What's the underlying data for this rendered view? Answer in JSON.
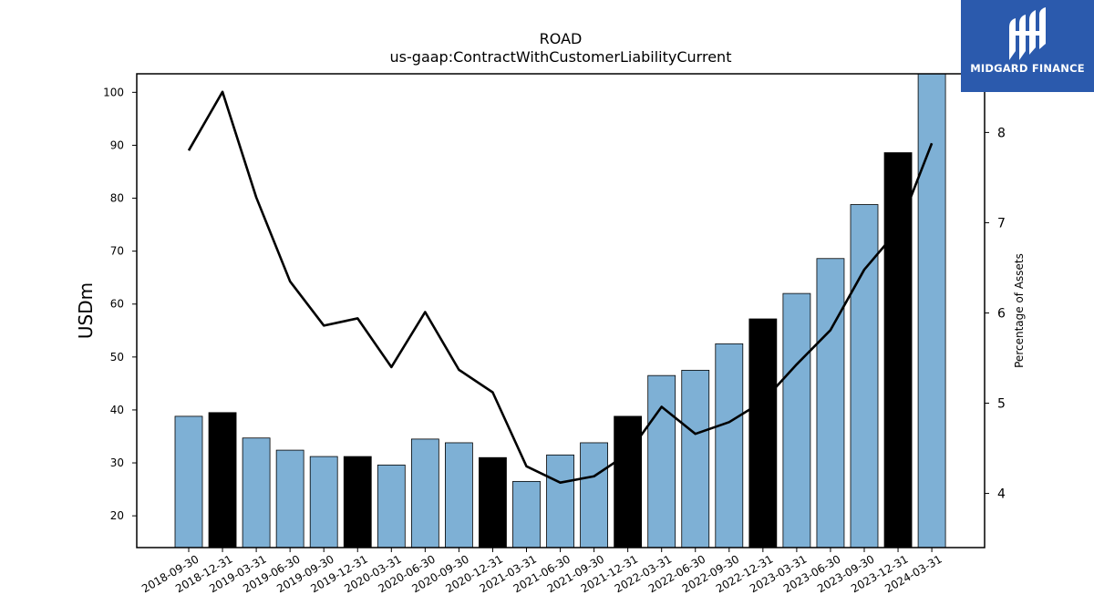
{
  "chart_data": {
    "type": "bar",
    "title": "ROAD",
    "subtitle": "us-gaap:ContractWithCustomerLiabilityCurrent",
    "ylabel": "USDm",
    "ylabel_right": "Percentage of Assets",
    "categories": [
      "2018-09-30",
      "2018-12-31",
      "2019-03-31",
      "2019-06-30",
      "2019-09-30",
      "2019-12-31",
      "2020-03-31",
      "2020-06-30",
      "2020-09-30",
      "2020-12-31",
      "2021-03-31",
      "2021-06-30",
      "2021-09-30",
      "2021-12-31",
      "2022-03-31",
      "2022-06-30",
      "2022-09-30",
      "2022-12-31",
      "2023-03-31",
      "2023-06-30",
      "2023-09-30",
      "2023-12-31",
      "2024-03-31"
    ],
    "series": [
      {
        "type": "bar",
        "axis": "left",
        "values": [
          38.8,
          39.5,
          34.7,
          32.4,
          31.2,
          31.2,
          29.6,
          34.5,
          33.8,
          31.0,
          26.5,
          31.5,
          33.8,
          38.8,
          46.5,
          47.5,
          52.5,
          57.2,
          62.0,
          68.6,
          78.8,
          88.6,
          103.5
        ],
        "highlight": [
          false,
          true,
          false,
          false,
          false,
          true,
          false,
          false,
          false,
          true,
          false,
          false,
          false,
          true,
          false,
          false,
          false,
          true,
          false,
          false,
          false,
          true,
          false
        ]
      },
      {
        "type": "line",
        "axis": "right",
        "values": [
          7.8,
          8.45,
          7.28,
          6.35,
          5.86,
          5.94,
          5.4,
          6.01,
          5.37,
          5.12,
          4.3,
          4.12,
          4.19,
          4.44,
          4.96,
          4.66,
          4.79,
          5.02,
          5.43,
          5.81,
          6.48,
          6.92,
          7.88
        ]
      }
    ],
    "ylim": [
      14,
      103.5
    ],
    "ylim_right": [
      3.4,
      8.65
    ],
    "yticks": [
      20,
      30,
      40,
      50,
      60,
      70,
      80,
      90,
      100
    ],
    "yticks_right": [
      4,
      5,
      6,
      7,
      8
    ],
    "colors": {
      "bar": "#7eb0d5",
      "highlight_bar": "#000000",
      "line": "#000000"
    },
    "grid": false,
    "legend": "none"
  },
  "logo": {
    "text": "MIDGARD FINANCE",
    "color": "#2b5aad"
  }
}
